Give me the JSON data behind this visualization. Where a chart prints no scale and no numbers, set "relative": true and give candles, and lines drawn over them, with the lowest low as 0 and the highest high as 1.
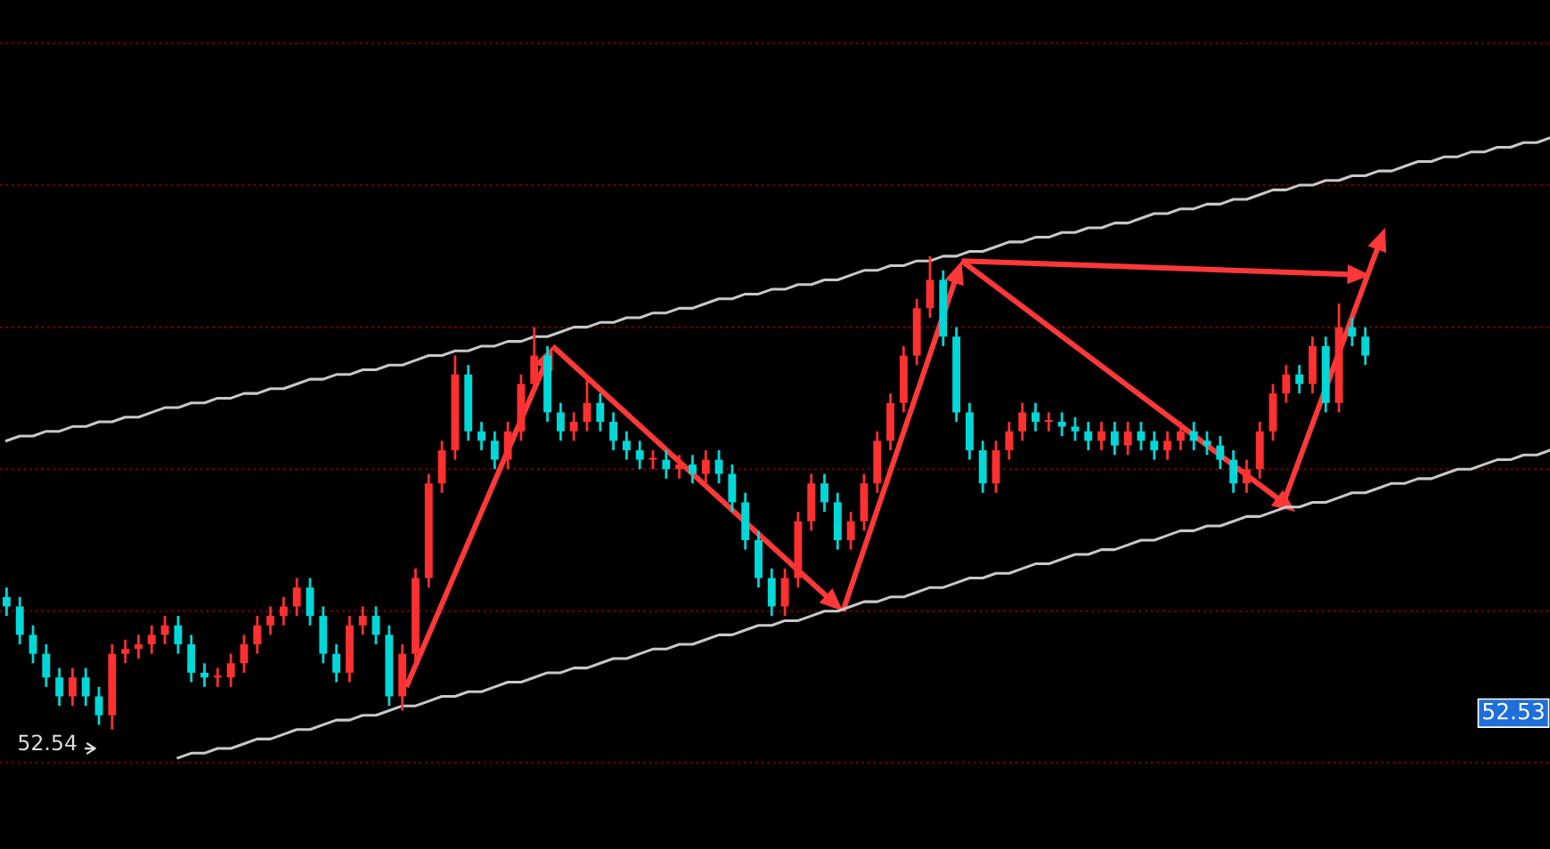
{
  "chart_data": {
    "type": "candlestick",
    "relative": true,
    "categories": [
      null,
      null,
      null,
      null,
      null,
      null,
      null,
      null,
      null,
      null,
      null,
      null,
      null,
      null,
      null,
      null,
      null,
      null,
      null,
      null,
      null,
      null,
      null,
      null,
      null,
      null,
      null,
      null,
      null,
      null,
      null,
      null,
      null,
      null,
      null,
      null,
      null,
      null,
      null,
      null,
      null,
      null,
      null,
      null,
      null,
      null,
      null,
      null,
      null,
      null,
      null,
      null,
      null,
      null,
      null,
      null,
      null,
      null,
      null,
      null,
      null,
      null,
      null,
      null,
      null,
      null,
      null,
      null,
      null,
      null,
      null,
      null,
      null,
      null,
      null,
      null,
      null,
      null,
      null,
      null,
      null,
      null,
      null,
      null,
      null,
      null,
      null,
      null,
      null,
      null,
      null,
      null,
      null,
      null,
      null,
      null,
      null,
      null,
      null,
      null,
      null,
      null,
      null,
      null,
      null,
      null,
      null,
      null,
      null,
      null,
      null,
      null,
      null,
      null,
      null,
      null,
      null,
      null
    ],
    "colors": [
      "#00d8d8",
      "#00d8d8",
      "#00d8d8",
      "#00d8d8",
      "#00d8d8",
      "#ff3030",
      "#00d8d8",
      "#00d8d8",
      "#ff3030",
      "#ff3030",
      "#ff3030",
      "#ff3030",
      "#ff3030",
      "#00d8d8",
      "#00d8d8",
      "#00d8d8",
      "#ff3030",
      "#ff3030",
      "#ff3030",
      "#ff3030",
      "#ff3030",
      "#ff3030",
      "#ff3030",
      "#00d8d8",
      "#00d8d8",
      "#00d8d8",
      "#ff3030",
      "#ff3030",
      "#00d8d8",
      "#00d8d8",
      "#ff3030",
      "#ff3030",
      "#ff3030",
      "#ff3030",
      "#ff3030",
      "#00d8d8",
      "#00d8d8",
      "#00d8d8",
      "#ff3030",
      "#ff3030",
      "#ff3030",
      "#00d8d8",
      "#00d8d8",
      "#ff3030",
      "#ff3030",
      "#00d8d8",
      "#00d8d8",
      "#00d8d8",
      "#00d8d8",
      "#ff3030",
      "#00d8d8",
      "#ff3030",
      "#00d8d8",
      "#ff3030",
      "#00d8d8",
      "#00d8d8",
      "#00d8d8",
      "#00d8d8",
      "#00d8d8",
      "#ff3030",
      "#ff3030",
      "#ff3030",
      "#00d8d8",
      "#00d8d8",
      "#ff3030",
      "#ff3030",
      "#ff3030",
      "#ff3030",
      "#ff3030",
      "#ff3030",
      "#ff3030",
      "#00d8d8",
      "#00d8d8",
      "#00d8d8",
      "#00d8d8",
      "#ff3030",
      "#ff3030",
      "#ff3030",
      "#00d8d8",
      "#ff3030",
      "#00d8d8",
      "#00d8d8",
      "#00d8d8",
      "#ff3030",
      "#00d8d8",
      "#ff3030",
      "#00d8d8",
      "#00d8d8",
      "#ff3030",
      "#ff3030",
      "#00d8d8",
      "#00d8d8",
      "#00d8d8",
      "#00d8d8",
      "#ff3030",
      "#ff3030",
      "#ff3030",
      "#ff3030",
      "#00d8d8",
      "#ff3030",
      "#00d8d8",
      "#ff3030",
      "#00d8d8",
      "#00d8d8",
      null,
      null,
      null,
      null,
      null,
      null,
      null,
      null,
      null,
      null,
      null,
      null,
      null,
      null
    ],
    "ohlc": [
      [
        0.28,
        0.3,
        0.24,
        0.26
      ],
      [
        0.26,
        0.28,
        0.18,
        0.2
      ],
      [
        0.2,
        0.22,
        0.14,
        0.16
      ],
      [
        0.16,
        0.18,
        0.09,
        0.11
      ],
      [
        0.11,
        0.13,
        0.05,
        0.07
      ],
      [
        0.07,
        0.13,
        0.05,
        0.11
      ],
      [
        0.11,
        0.13,
        0.05,
        0.07
      ],
      [
        0.07,
        0.09,
        0.01,
        0.03
      ],
      [
        0.03,
        0.18,
        0.0,
        0.16
      ],
      [
        0.16,
        0.19,
        0.14,
        0.17
      ],
      [
        0.17,
        0.2,
        0.15,
        0.18
      ],
      [
        0.18,
        0.22,
        0.16,
        0.2
      ],
      [
        0.2,
        0.24,
        0.18,
        0.22
      ],
      [
        0.22,
        0.24,
        0.16,
        0.18
      ],
      [
        0.18,
        0.2,
        0.1,
        0.12
      ],
      [
        0.12,
        0.14,
        0.09,
        0.11
      ],
      [
        0.11,
        0.13,
        0.09,
        0.11
      ],
      [
        0.11,
        0.16,
        0.09,
        0.14
      ],
      [
        0.14,
        0.2,
        0.12,
        0.18
      ],
      [
        0.18,
        0.24,
        0.16,
        0.22
      ],
      [
        0.22,
        0.26,
        0.2,
        0.24
      ],
      [
        0.24,
        0.28,
        0.22,
        0.26
      ],
      [
        0.26,
        0.32,
        0.24,
        0.3
      ],
      [
        0.3,
        0.32,
        0.22,
        0.24
      ],
      [
        0.24,
        0.26,
        0.14,
        0.16
      ],
      [
        0.16,
        0.18,
        0.1,
        0.12
      ],
      [
        0.12,
        0.24,
        0.1,
        0.22
      ],
      [
        0.22,
        0.26,
        0.2,
        0.24
      ],
      [
        0.24,
        0.26,
        0.18,
        0.2
      ],
      [
        0.2,
        0.22,
        0.05,
        0.07
      ],
      [
        0.07,
        0.18,
        0.04,
        0.16
      ],
      [
        0.16,
        0.34,
        0.14,
        0.32
      ],
      [
        0.32,
        0.54,
        0.3,
        0.52
      ],
      [
        0.52,
        0.61,
        0.5,
        0.59
      ],
      [
        0.59,
        0.79,
        0.57,
        0.75
      ],
      [
        0.75,
        0.77,
        0.61,
        0.63
      ],
      [
        0.63,
        0.65,
        0.59,
        0.61
      ],
      [
        0.61,
        0.63,
        0.55,
        0.57
      ],
      [
        0.57,
        0.65,
        0.55,
        0.63
      ],
      [
        0.63,
        0.75,
        0.61,
        0.73
      ],
      [
        0.73,
        0.85,
        0.71,
        0.79
      ],
      [
        0.79,
        0.81,
        0.65,
        0.67
      ],
      [
        0.67,
        0.69,
        0.61,
        0.63
      ],
      [
        0.63,
        0.67,
        0.61,
        0.65
      ],
      [
        0.65,
        0.75,
        0.63,
        0.69
      ],
      [
        0.69,
        0.71,
        0.63,
        0.65
      ],
      [
        0.65,
        0.67,
        0.59,
        0.61
      ],
      [
        0.61,
        0.63,
        0.57,
        0.59
      ],
      [
        0.59,
        0.61,
        0.55,
        0.57
      ],
      [
        0.57,
        0.59,
        0.55,
        0.57
      ],
      [
        0.57,
        0.59,
        0.53,
        0.55
      ],
      [
        0.55,
        0.58,
        0.53,
        0.56
      ],
      [
        0.56,
        0.58,
        0.52,
        0.54
      ],
      [
        0.54,
        0.59,
        0.52,
        0.57
      ],
      [
        0.57,
        0.59,
        0.52,
        0.54
      ],
      [
        0.54,
        0.56,
        0.46,
        0.48
      ],
      [
        0.48,
        0.5,
        0.38,
        0.4
      ],
      [
        0.4,
        0.42,
        0.3,
        0.32
      ],
      [
        0.32,
        0.34,
        0.24,
        0.26
      ],
      [
        0.26,
        0.34,
        0.24,
        0.32
      ],
      [
        0.32,
        0.46,
        0.3,
        0.44
      ],
      [
        0.44,
        0.54,
        0.42,
        0.52
      ],
      [
        0.52,
        0.54,
        0.46,
        0.48
      ],
      [
        0.48,
        0.5,
        0.38,
        0.4
      ],
      [
        0.4,
        0.46,
        0.38,
        0.44
      ],
      [
        0.44,
        0.54,
        0.42,
        0.52
      ],
      [
        0.52,
        0.63,
        0.5,
        0.61
      ],
      [
        0.61,
        0.71,
        0.59,
        0.69
      ],
      [
        0.69,
        0.81,
        0.67,
        0.79
      ],
      [
        0.79,
        0.91,
        0.77,
        0.89
      ],
      [
        0.89,
        1.0,
        0.87,
        0.95
      ],
      [
        0.95,
        0.97,
        0.81,
        0.83
      ],
      [
        0.83,
        0.85,
        0.65,
        0.67
      ],
      [
        0.67,
        0.69,
        0.57,
        0.59
      ],
      [
        0.59,
        0.61,
        0.5,
        0.52
      ],
      [
        0.52,
        0.61,
        0.5,
        0.59
      ],
      [
        0.59,
        0.65,
        0.57,
        0.63
      ],
      [
        0.63,
        0.69,
        0.61,
        0.67
      ],
      [
        0.67,
        0.69,
        0.63,
        0.65
      ],
      [
        0.65,
        0.67,
        0.63,
        0.65
      ],
      [
        0.65,
        0.67,
        0.62,
        0.64
      ],
      [
        0.64,
        0.66,
        0.61,
        0.63
      ],
      [
        0.63,
        0.65,
        0.59,
        0.61
      ],
      [
        0.61,
        0.65,
        0.59,
        0.63
      ],
      [
        0.63,
        0.65,
        0.58,
        0.6
      ],
      [
        0.6,
        0.65,
        0.58,
        0.63
      ],
      [
        0.63,
        0.65,
        0.59,
        0.61
      ],
      [
        0.61,
        0.63,
        0.57,
        0.59
      ],
      [
        0.59,
        0.63,
        0.57,
        0.61
      ],
      [
        0.61,
        0.65,
        0.59,
        0.63
      ],
      [
        0.63,
        0.65,
        0.59,
        0.61
      ],
      [
        0.61,
        0.63,
        0.58,
        0.6
      ],
      [
        0.6,
        0.62,
        0.55,
        0.57
      ],
      [
        0.57,
        0.59,
        0.5,
        0.52
      ],
      [
        0.52,
        0.57,
        0.5,
        0.55
      ],
      [
        0.55,
        0.65,
        0.53,
        0.63
      ],
      [
        0.63,
        0.73,
        0.61,
        0.71
      ],
      [
        0.71,
        0.77,
        0.69,
        0.75
      ],
      [
        0.75,
        0.77,
        0.71,
        0.73
      ],
      [
        0.73,
        0.83,
        0.71,
        0.81
      ],
      [
        0.81,
        0.83,
        0.67,
        0.69
      ],
      [
        0.69,
        0.9,
        0.67,
        0.85
      ],
      [
        0.85,
        0.87,
        0.81,
        0.83
      ],
      [
        0.83,
        0.85,
        0.77,
        0.79
      ],
      null,
      null,
      null,
      null,
      null,
      null,
      null,
      null,
      null,
      null,
      null,
      null,
      null,
      null
    ],
    "series": [
      {
        "type": "line",
        "color": "#c8c8c8",
        "values": [
          0.61,
          0.62,
          0.62,
          0.63,
          0.63,
          0.64,
          0.64,
          0.65,
          0.65,
          0.66,
          0.66,
          0.67,
          0.68,
          0.68,
          0.69,
          0.69,
          0.7,
          0.7,
          0.71,
          0.71,
          0.72,
          0.72,
          0.73,
          0.74,
          0.74,
          0.75,
          0.75,
          0.76,
          0.76,
          0.77,
          0.77,
          0.78,
          0.79,
          0.79,
          0.8,
          0.8,
          0.81,
          0.81,
          0.82,
          0.82,
          0.83,
          0.83,
          0.84,
          0.85,
          0.85,
          0.86,
          0.86,
          0.87,
          0.87,
          0.88,
          0.88,
          0.89,
          0.89,
          0.9,
          0.91,
          0.91,
          0.92,
          0.92,
          0.93,
          0.93,
          0.94,
          0.94,
          0.95,
          0.95,
          0.96,
          0.97,
          0.97,
          0.98,
          0.98,
          0.99,
          0.99,
          1.0,
          1.0,
          1.01,
          1.01,
          1.02,
          1.03,
          1.03,
          1.04,
          1.04,
          1.05,
          1.05,
          1.06,
          1.06,
          1.07,
          1.07,
          1.08,
          1.09,
          1.09,
          1.1,
          1.1,
          1.11,
          1.11,
          1.12,
          1.12,
          1.13,
          1.14,
          1.14,
          1.15,
          1.15,
          1.16,
          1.16,
          1.17,
          1.17,
          1.18,
          1.18,
          1.19,
          1.2,
          1.2,
          1.21,
          1.21,
          1.22,
          1.22,
          1.23,
          1.23,
          1.24,
          1.24,
          1.25
        ]
      },
      {
        "type": "line",
        "color": "#c8c8c8",
        "values": [
          null,
          null,
          null,
          null,
          null,
          null,
          null,
          null,
          null,
          null,
          null,
          null,
          null,
          -0.06,
          -0.05,
          -0.05,
          -0.04,
          -0.04,
          -0.03,
          -0.02,
          -0.02,
          -0.01,
          0.0,
          0.0,
          0.01,
          0.02,
          0.02,
          0.03,
          0.03,
          0.04,
          0.05,
          0.05,
          0.06,
          0.07,
          0.07,
          0.08,
          0.08,
          0.09,
          0.1,
          0.1,
          0.11,
          0.12,
          0.12,
          0.13,
          0.13,
          0.14,
          0.15,
          0.15,
          0.16,
          0.17,
          0.17,
          0.18,
          0.18,
          0.19,
          0.2,
          0.2,
          0.21,
          0.22,
          0.22,
          0.23,
          0.23,
          0.24,
          0.25,
          0.25,
          0.26,
          0.27,
          0.27,
          0.28,
          0.28,
          0.29,
          0.3,
          0.3,
          0.31,
          0.32,
          0.32,
          0.33,
          0.33,
          0.34,
          0.35,
          0.35,
          0.36,
          0.37,
          0.37,
          0.38,
          0.38,
          0.39,
          0.4,
          0.4,
          0.41,
          0.42,
          0.42,
          0.43,
          0.43,
          0.44,
          0.45,
          0.45,
          0.46,
          0.47,
          0.47,
          0.48,
          0.48,
          0.49,
          0.5,
          0.5,
          0.51,
          0.52,
          0.52,
          0.53,
          0.53,
          0.54,
          0.55,
          0.55,
          0.56,
          0.57,
          0.57,
          0.58,
          0.58,
          0.59
        ]
      }
    ],
    "ref_lines": [
      {
        "axis": "y",
        "value": 1.45,
        "color": "#6e0000",
        "line_style": "dotted"
      },
      {
        "axis": "y",
        "value": 1.15,
        "color": "#6e0000",
        "line_style": "dotted"
      },
      {
        "axis": "y",
        "value": 0.85,
        "color": "#6e0000",
        "line_style": "dotted"
      },
      {
        "axis": "y",
        "value": 0.55,
        "color": "#6e0000",
        "line_style": "dotted"
      },
      {
        "axis": "y",
        "value": 0.25,
        "color": "#6e0000",
        "line_style": "dotted"
      },
      {
        "axis": "y",
        "value": -0.07,
        "color": "#6e0000",
        "line_style": "dotted"
      }
    ],
    "annotations": [
      "52.54",
      "52.53"
    ]
  }
}
